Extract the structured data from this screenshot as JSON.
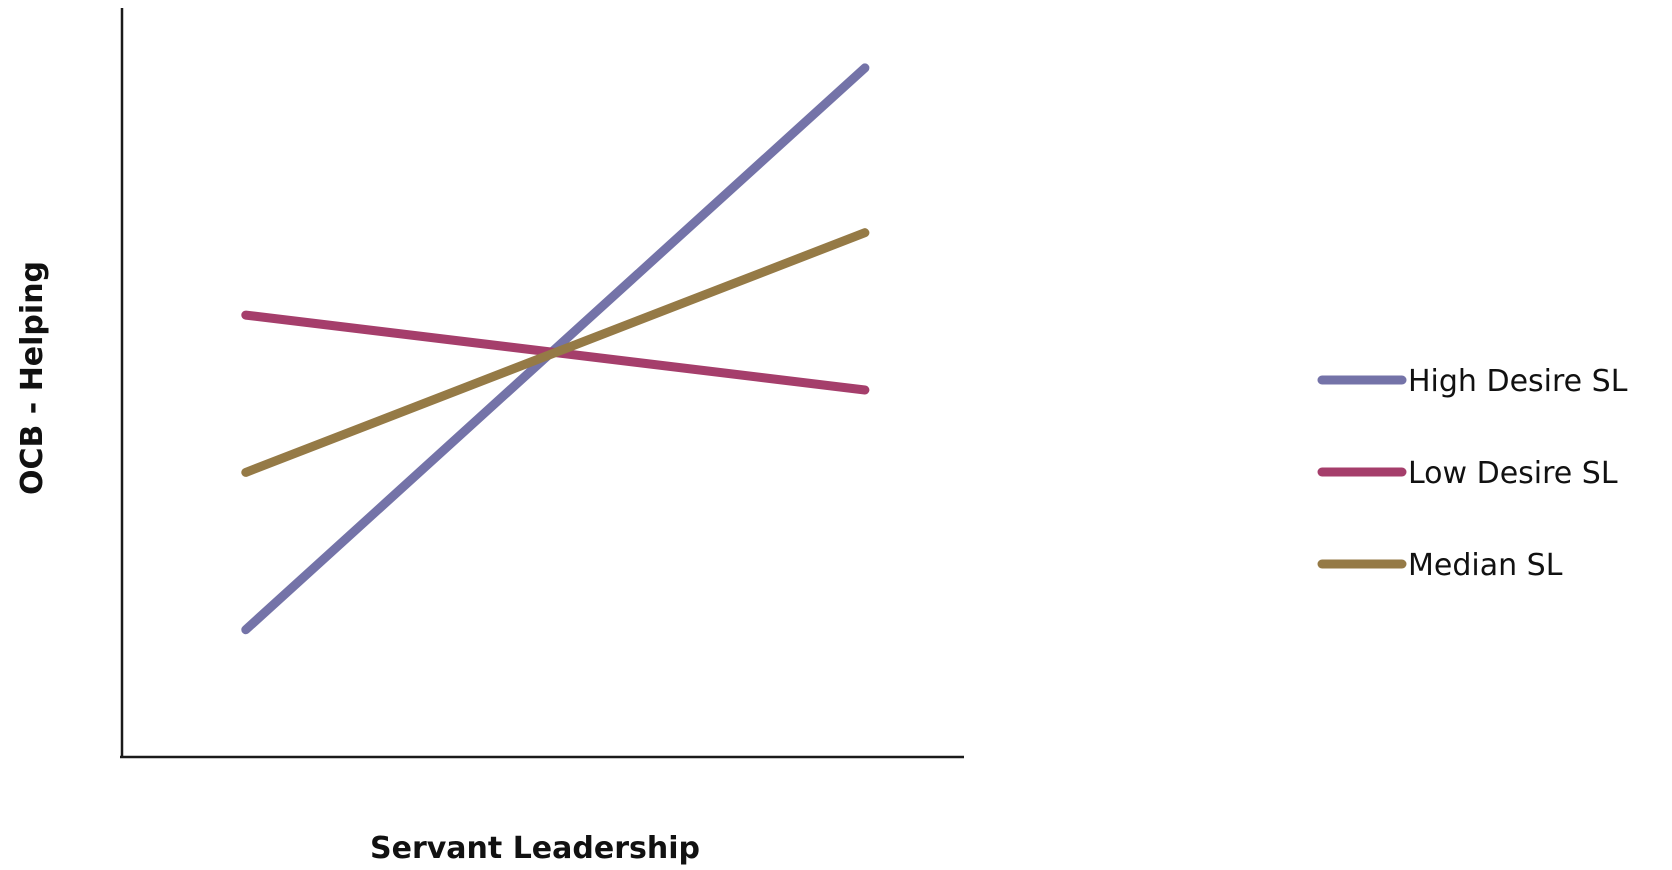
{
  "chart_data": {
    "type": "line",
    "title": "",
    "xlabel": "Servant Leadership",
    "ylabel": "OCB - Helping",
    "x": [
      0,
      1
    ],
    "xlim": [
      -0.2,
      1.16
    ],
    "ylim": [
      0,
      1
    ],
    "grid": false,
    "legend_position": "right",
    "series": [
      {
        "name": "High Desire SL",
        "color": "#7473a8",
        "values": [
          0.17,
          0.92
        ]
      },
      {
        "name": "Low Desire SL",
        "color": "#a53e6b",
        "values": [
          0.59,
          0.49
        ]
      },
      {
        "name": "Median SL",
        "color": "#957a46",
        "values": [
          0.38,
          0.7
        ]
      }
    ]
  }
}
